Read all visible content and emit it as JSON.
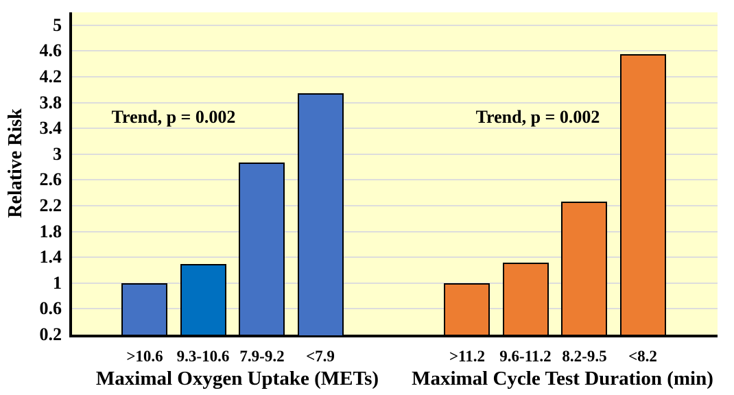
{
  "chart_data": {
    "type": "bar",
    "title": "",
    "ylabel": "Relative Risk",
    "plot_bg_color": "#FFFFCC",
    "gridline_color": "#DDDDDC",
    "axis_color": "#000000",
    "grid_on": true,
    "y_axis": {
      "min": 0.2,
      "max": 5.2,
      "step": 0.4,
      "tick_labels": [
        "5",
        "4.6",
        "4.2",
        "3.8",
        "3.4",
        "3",
        "2.6",
        "2.2",
        "1.8",
        "1.4",
        "1",
        "0.6",
        "0.2"
      ]
    },
    "groups": [
      {
        "xlabel": "Maximal Oxygen Uptake (METs)",
        "annotation": "Trend, p = 0.002",
        "categories": [
          ">10.6",
          "9.3-10.6",
          "7.9-9.2",
          "<7.9"
        ],
        "values": [
          1.0,
          1.3,
          2.87,
          3.95
        ],
        "bar_colors": [
          "#4472C4",
          "#0070C0",
          "#4472C4",
          "#4472C4"
        ],
        "bar_border_color": "#000000"
      },
      {
        "xlabel": "Maximal Cycle Test Duration (min)",
        "annotation": "Trend, p = 0.002",
        "categories": [
          ">11.2",
          "9.6-11.2",
          "8.2-9.5",
          "<8.2"
        ],
        "values": [
          1.0,
          1.32,
          2.26,
          4.55
        ],
        "bar_colors": [
          "#ED7D31",
          "#ED7D31",
          "#ED7D31",
          "#ED7D31"
        ],
        "bar_border_color": "#000000"
      }
    ]
  }
}
